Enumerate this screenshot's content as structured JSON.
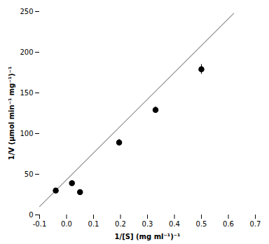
{
  "chart_data": {
    "type": "scatter",
    "xlabel": "1/[S] (mg ml⁻¹)⁻¹",
    "ylabel": "1/V (μmol min⁻¹ mg⁻¹)⁻¹",
    "series": [
      {
        "type": "line",
        "color": "#909090",
        "line_style": "solid",
        "x": [
          -0.1,
          0.62
        ],
        "values": [
          10.2,
          247.8
        ]
      },
      {
        "type": "scatter",
        "color": "black",
        "marker": "circle",
        "x": [
          -0.04,
          0.02,
          0.05,
          0.195,
          0.33,
          0.5
        ],
        "values": [
          30,
          39,
          28,
          89,
          129,
          179
        ],
        "x_err": [
          0.004,
          0.004,
          0.004,
          0.006,
          0.006,
          0.008
        ],
        "y_err": [
          2,
          3,
          2,
          4,
          4,
          6
        ]
      }
    ],
    "xlim": [
      -0.1,
      0.7
    ],
    "xticks": [
      -0.1,
      {
        "value": 0,
        "label": "0.0"
      },
      0.1,
      0.2,
      0.3,
      0.4,
      0.5,
      0.6,
      0.7
    ],
    "ylim": [
      0,
      250
    ],
    "yticks": [
      0,
      50,
      100,
      150,
      200,
      250
    ],
    "grid": false
  }
}
